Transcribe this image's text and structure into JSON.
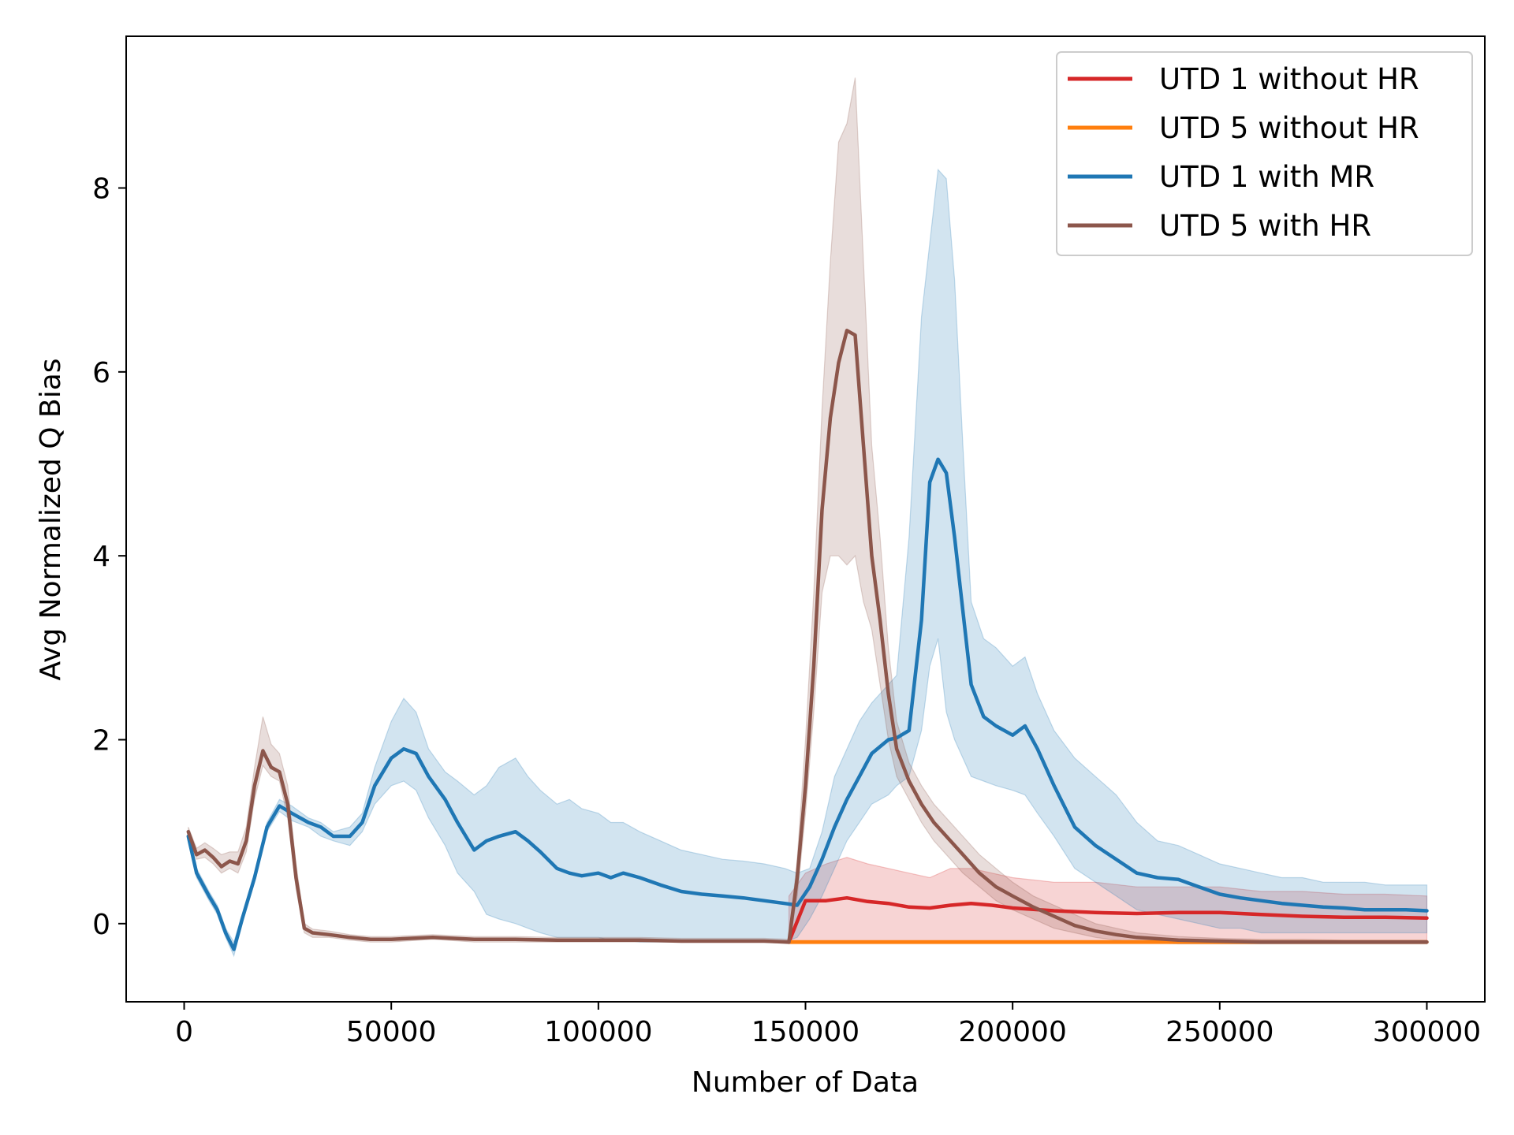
{
  "chart_data": {
    "type": "line",
    "title": "",
    "xlabel": "Number of Data",
    "ylabel": "Avg Normalized Q Bias",
    "xlim": [
      -14000,
      314000
    ],
    "ylim": [
      -0.85,
      9.65
    ],
    "xticks": [
      0,
      50000,
      100000,
      150000,
      200000,
      250000,
      300000
    ],
    "xtick_labels": [
      "0",
      "50000",
      "100000",
      "150000",
      "200000",
      "250000",
      "300000"
    ],
    "yticks": [
      0,
      2,
      4,
      6,
      8
    ],
    "ytick_labels": [
      "0",
      "2",
      "4",
      "6",
      "8"
    ],
    "grid": false,
    "legend_position": "top-right",
    "series": [
      {
        "name": "UTD 1 without HR",
        "color": "#d62728",
        "x": [
          146000,
          150000,
          155000,
          160000,
          165000,
          170000,
          175000,
          180000,
          185000,
          190000,
          195000,
          200000,
          210000,
          220000,
          230000,
          240000,
          250000,
          260000,
          270000,
          280000,
          290000,
          300000
        ],
        "y": [
          -0.2,
          0.25,
          0.25,
          0.28,
          0.24,
          0.22,
          0.18,
          0.17,
          0.2,
          0.22,
          0.2,
          0.17,
          0.14,
          0.12,
          0.11,
          0.12,
          0.12,
          0.1,
          0.08,
          0.07,
          0.07,
          0.06
        ],
        "band_low": [
          -0.2,
          -0.2,
          -0.2,
          -0.2,
          -0.2,
          -0.2,
          -0.2,
          -0.2,
          -0.2,
          -0.2,
          -0.2,
          -0.2,
          -0.2,
          -0.2,
          -0.2,
          -0.2,
          -0.2,
          -0.2,
          -0.2,
          -0.2,
          -0.2,
          -0.2
        ],
        "band_high": [
          0.3,
          0.55,
          0.65,
          0.72,
          0.65,
          0.6,
          0.55,
          0.5,
          0.6,
          0.6,
          0.55,
          0.5,
          0.45,
          0.45,
          0.4,
          0.4,
          0.4,
          0.35,
          0.35,
          0.32,
          0.32,
          0.3
        ]
      },
      {
        "name": "UTD 5 without HR",
        "color": "#ff7f0e",
        "x": [
          146000,
          160000,
          180000,
          200000,
          220000,
          240000,
          260000,
          280000,
          300000
        ],
        "y": [
          -0.2,
          -0.2,
          -0.2,
          -0.2,
          -0.2,
          -0.2,
          -0.2,
          -0.2,
          -0.2
        ],
        "band_low": [
          -0.22,
          -0.22,
          -0.22,
          -0.22,
          -0.22,
          -0.22,
          -0.22,
          -0.22,
          -0.22
        ],
        "band_high": [
          -0.18,
          -0.18,
          -0.18,
          -0.18,
          -0.18,
          -0.18,
          -0.18,
          -0.18,
          -0.18
        ]
      },
      {
        "name": "UTD 1 with MR",
        "color": "#1f77b4",
        "x": [
          1000,
          3000,
          6000,
          8000,
          10000,
          12000,
          14000,
          17000,
          20000,
          23000,
          26000,
          30000,
          33000,
          36000,
          40000,
          43000,
          46000,
          50000,
          53000,
          56000,
          59000,
          63000,
          66000,
          70000,
          73000,
          76000,
          80000,
          83000,
          86000,
          90000,
          93000,
          96000,
          100000,
          103000,
          106000,
          110000,
          115000,
          120000,
          125000,
          130000,
          135000,
          140000,
          145000,
          148000,
          151000,
          154000,
          157000,
          160000,
          163000,
          166000,
          170000,
          172000,
          175000,
          178000,
          180000,
          182000,
          184000,
          186000,
          188000,
          190000,
          193000,
          196000,
          200000,
          203000,
          206000,
          210000,
          215000,
          220000,
          225000,
          230000,
          235000,
          240000,
          245000,
          250000,
          255000,
          260000,
          265000,
          270000,
          275000,
          280000,
          285000,
          290000,
          295000,
          300000
        ],
        "y": [
          0.95,
          0.55,
          0.3,
          0.15,
          -0.1,
          -0.28,
          0.05,
          0.5,
          1.05,
          1.28,
          1.2,
          1.1,
          1.05,
          0.95,
          0.95,
          1.1,
          1.5,
          1.8,
          1.9,
          1.85,
          1.6,
          1.35,
          1.1,
          0.8,
          0.9,
          0.95,
          1.0,
          0.9,
          0.78,
          0.6,
          0.55,
          0.52,
          0.55,
          0.5,
          0.55,
          0.5,
          0.42,
          0.35,
          0.32,
          0.3,
          0.28,
          0.25,
          0.22,
          0.2,
          0.4,
          0.7,
          1.05,
          1.35,
          1.6,
          1.85,
          2.0,
          2.02,
          2.1,
          3.3,
          4.8,
          5.05,
          4.9,
          4.2,
          3.4,
          2.6,
          2.25,
          2.15,
          2.05,
          2.15,
          1.9,
          1.5,
          1.05,
          0.85,
          0.7,
          0.55,
          0.5,
          0.48,
          0.4,
          0.32,
          0.28,
          0.25,
          0.22,
          0.2,
          0.18,
          0.17,
          0.15,
          0.15,
          0.15,
          0.14
        ],
        "band_low": [
          0.9,
          0.5,
          0.25,
          0.1,
          -0.15,
          -0.35,
          0.0,
          0.45,
          1.0,
          1.22,
          1.12,
          1.05,
          0.95,
          0.9,
          0.85,
          1.0,
          1.3,
          1.5,
          1.55,
          1.45,
          1.15,
          0.85,
          0.55,
          0.35,
          0.1,
          0.05,
          0.0,
          -0.05,
          -0.1,
          -0.15,
          -0.15,
          -0.15,
          -0.15,
          -0.18,
          -0.18,
          -0.2,
          -0.2,
          -0.2,
          -0.2,
          -0.2,
          -0.2,
          -0.2,
          -0.2,
          -0.15,
          0.05,
          0.3,
          0.6,
          0.9,
          1.1,
          1.3,
          1.4,
          1.5,
          1.6,
          2.1,
          2.8,
          3.1,
          2.3,
          2.0,
          1.8,
          1.6,
          1.55,
          1.5,
          1.45,
          1.4,
          1.2,
          0.95,
          0.6,
          0.45,
          0.3,
          0.15,
          0.1,
          0.05,
          0.0,
          -0.05,
          -0.05,
          -0.1,
          -0.1,
          -0.1,
          -0.1,
          -0.1,
          -0.1,
          -0.1,
          -0.1,
          -0.1
        ],
        "band_high": [
          1.0,
          0.6,
          0.35,
          0.2,
          -0.05,
          -0.2,
          0.1,
          0.55,
          1.1,
          1.35,
          1.28,
          1.15,
          1.1,
          1.0,
          1.05,
          1.2,
          1.7,
          2.2,
          2.45,
          2.3,
          1.9,
          1.65,
          1.55,
          1.4,
          1.5,
          1.7,
          1.8,
          1.6,
          1.45,
          1.3,
          1.35,
          1.25,
          1.2,
          1.1,
          1.1,
          1.0,
          0.9,
          0.8,
          0.75,
          0.7,
          0.68,
          0.65,
          0.6,
          0.55,
          0.6,
          1.0,
          1.6,
          1.9,
          2.2,
          2.4,
          2.6,
          2.7,
          4.2,
          6.6,
          7.4,
          8.2,
          8.1,
          7.0,
          5.2,
          3.5,
          3.1,
          3.0,
          2.8,
          2.9,
          2.5,
          2.1,
          1.8,
          1.6,
          1.4,
          1.1,
          0.9,
          0.85,
          0.75,
          0.65,
          0.6,
          0.55,
          0.5,
          0.5,
          0.45,
          0.45,
          0.45,
          0.42,
          0.42,
          0.42
        ]
      },
      {
        "name": "UTD 5 with HR",
        "color": "#8c564b",
        "x": [
          1000,
          3000,
          5000,
          7000,
          9000,
          11000,
          13000,
          15000,
          17000,
          19000,
          21000,
          23000,
          25000,
          27000,
          29000,
          31000,
          35000,
          40000,
          45000,
          50000,
          60000,
          70000,
          80000,
          90000,
          100000,
          110000,
          120000,
          130000,
          140000,
          146000,
          148000,
          150000,
          152000,
          154000,
          156000,
          158000,
          160000,
          162000,
          164000,
          166000,
          168000,
          170000,
          172000,
          175000,
          178000,
          181000,
          184000,
          188000,
          192000,
          196000,
          200000,
          205000,
          210000,
          215000,
          220000,
          225000,
          230000,
          240000,
          250000,
          260000,
          270000,
          280000,
          290000,
          300000
        ],
        "y": [
          1.0,
          0.75,
          0.8,
          0.72,
          0.62,
          0.68,
          0.65,
          0.9,
          1.5,
          1.88,
          1.7,
          1.65,
          1.3,
          0.5,
          -0.05,
          -0.1,
          -0.12,
          -0.15,
          -0.17,
          -0.17,
          -0.15,
          -0.17,
          -0.17,
          -0.18,
          -0.18,
          -0.18,
          -0.19,
          -0.19,
          -0.19,
          -0.2,
          0.5,
          1.5,
          2.8,
          4.5,
          5.5,
          6.1,
          6.45,
          6.4,
          5.2,
          4.0,
          3.3,
          2.5,
          1.9,
          1.55,
          1.3,
          1.1,
          0.95,
          0.75,
          0.55,
          0.4,
          0.3,
          0.18,
          0.08,
          -0.02,
          -0.08,
          -0.12,
          -0.15,
          -0.18,
          -0.19,
          -0.2,
          -0.2,
          -0.2,
          -0.2,
          -0.2
        ],
        "band_low": [
          0.95,
          0.7,
          0.72,
          0.65,
          0.55,
          0.6,
          0.55,
          0.78,
          1.35,
          1.72,
          1.6,
          1.55,
          1.15,
          0.38,
          -0.1,
          -0.15,
          -0.15,
          -0.18,
          -0.2,
          -0.2,
          -0.17,
          -0.2,
          -0.2,
          -0.2,
          -0.2,
          -0.2,
          -0.2,
          -0.2,
          -0.2,
          -0.22,
          0.3,
          1.2,
          2.3,
          3.6,
          4.0,
          4.0,
          3.9,
          4.0,
          3.5,
          3.2,
          2.6,
          2.0,
          1.6,
          1.35,
          1.1,
          0.9,
          0.75,
          0.55,
          0.4,
          0.25,
          0.15,
          0.05,
          -0.05,
          -0.1,
          -0.15,
          -0.18,
          -0.2,
          -0.22,
          -0.22,
          -0.22,
          -0.22,
          -0.22,
          -0.22,
          -0.22
        ],
        "band_high": [
          1.05,
          0.82,
          0.88,
          0.82,
          0.75,
          0.78,
          0.78,
          1.05,
          1.7,
          2.25,
          1.95,
          1.85,
          1.5,
          0.65,
          0.0,
          -0.06,
          -0.08,
          -0.12,
          -0.14,
          -0.14,
          -0.12,
          -0.14,
          -0.14,
          -0.15,
          -0.15,
          -0.15,
          -0.16,
          -0.16,
          -0.16,
          -0.17,
          0.7,
          2.0,
          3.6,
          5.6,
          7.2,
          8.5,
          8.7,
          9.2,
          7.2,
          5.2,
          4.2,
          3.0,
          2.2,
          1.75,
          1.5,
          1.3,
          1.15,
          0.95,
          0.75,
          0.6,
          0.45,
          0.3,
          0.2,
          0.1,
          0.0,
          -0.05,
          -0.1,
          -0.14,
          -0.16,
          -0.17,
          -0.17,
          -0.18,
          -0.18,
          -0.18
        ]
      }
    ]
  }
}
